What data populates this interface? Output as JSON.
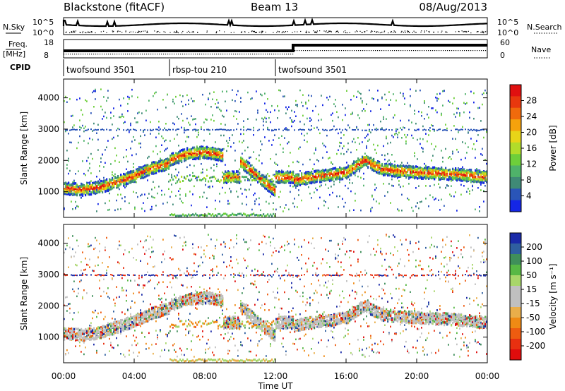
{
  "header": {
    "station": "Blackstone (fitACF)",
    "beam": "Beam 13",
    "date": "08/Aug/2013"
  },
  "summary": {
    "left_labels": [
      "N.Sky",
      "Freq.",
      "[MHz]",
      "CPID"
    ],
    "right_labels": [
      "N.Search",
      "Nave"
    ],
    "nsky_ticks": [
      "10^5",
      "10^0"
    ],
    "nsearch_ticks": [
      "10^5",
      "10^0"
    ],
    "freq_ticks": [
      "18",
      "8"
    ],
    "nave_ticks": [
      "60",
      "0"
    ],
    "cpid_segments": [
      {
        "label": "twofsound 3501",
        "start_hour": 0,
        "end_hour": 6
      },
      {
        "label": "rbsp-tou 210",
        "start_hour": 6,
        "end_hour": 12
      },
      {
        "label": "twofsound 3501",
        "start_hour": 12,
        "end_hour": 24
      }
    ],
    "freq_step_hour": 13
  },
  "axes": {
    "x_label": "Time UT",
    "x_ticks": [
      "00:00",
      "04:00",
      "08:00",
      "12:00",
      "16:00",
      "20:00",
      "00:00"
    ],
    "y_label": "Slant Range [km]",
    "y_ticks": [
      "1000",
      "2000",
      "3000",
      "4000"
    ]
  },
  "colorbars": {
    "power": {
      "label": "Power [dB]",
      "ticks": [
        "4",
        "8",
        "12",
        "16",
        "20",
        "24",
        "28"
      ],
      "colors": [
        "#1426e6",
        "#2a55b8",
        "#3f8a76",
        "#4fb26a",
        "#6ecf3a",
        "#b2dc2a",
        "#e8d418",
        "#f5a20c",
        "#f06a0c",
        "#e8380e",
        "#e01010"
      ]
    },
    "velocity": {
      "label": "Velocity [m s⁻¹]",
      "ticks": [
        "200",
        "100",
        "50",
        "15",
        "-15",
        "-50",
        "-100",
        "-200"
      ],
      "colors": [
        "#1a2aa8",
        "#2f5fa0",
        "#3f8f5a",
        "#57b845",
        "#a8d66a",
        "#c0c0c0",
        "#c0c0c0",
        "#e9ae4a",
        "#ef8a14",
        "#ee5c10",
        "#e83010",
        "#e00c0c"
      ]
    }
  },
  "chart_data": [
    {
      "type": "heatmap",
      "title": "Power",
      "xlabel": "Time UT",
      "ylabel": "Slant Range [km]",
      "xlim": [
        0,
        24
      ],
      "ylim": [
        180,
        4600
      ],
      "colorbar_label": "Power [dB]",
      "colorbar_range": [
        0,
        32
      ],
      "echo_bands": [
        {
          "x": [
            0,
            1,
            2,
            3,
            4,
            5,
            6
          ],
          "y": [
            1150,
            1100,
            1180,
            1350,
            1550,
            1800,
            1950
          ],
          "value_db": 24
        },
        {
          "x": [
            6,
            7,
            8,
            9
          ],
          "y": [
            2050,
            2250,
            2300,
            2200
          ],
          "value_db": 22
        },
        {
          "x": [
            10,
            11,
            12
          ],
          "y": [
            2000,
            1500,
            1050
          ],
          "value_db": 26
        },
        {
          "x": [
            13,
            14,
            16,
            17,
            18,
            20,
            22,
            24
          ],
          "y": [
            1400,
            1500,
            1650,
            2050,
            1750,
            1650,
            1600,
            1500
          ],
          "value_db": 22
        }
      ]
    },
    {
      "type": "heatmap",
      "title": "Velocity",
      "xlabel": "Time UT",
      "ylabel": "Slant Range [km]",
      "xlim": [
        0,
        24
      ],
      "ylim": [
        180,
        4600
      ],
      "colorbar_label": "Velocity [m s⁻¹]",
      "colorbar_range": [
        -250,
        250
      ]
    }
  ]
}
